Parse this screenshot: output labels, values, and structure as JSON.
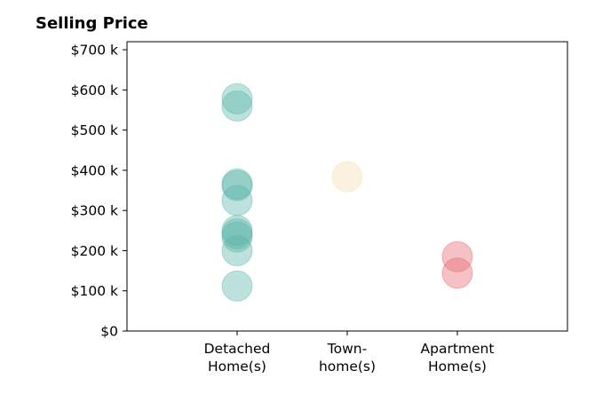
{
  "chart_data": {
    "type": "scatter",
    "title": "Selling Price",
    "xlabel": "",
    "ylabel": "",
    "ylim": [
      0,
      720
    ],
    "y_ticks": [
      0,
      100,
      200,
      300,
      400,
      500,
      600,
      700
    ],
    "y_tick_labels": [
      "$0",
      "$100 k",
      "$200 k",
      "$300 k",
      "$400 k",
      "$500 k",
      "$600 k",
      "$700 k"
    ],
    "categories": [
      "Detached\nHome(s)",
      "Town-\nhome(s)",
      "Apartment\nHome(s)"
    ],
    "colors": {
      "Detached": "#5bb5a8",
      "Townhome": "#f3dfaf",
      "Apartment": "#e8646f"
    },
    "grid": false,
    "points": [
      {
        "category": 0,
        "y": 578
      },
      {
        "category": 0,
        "y": 560
      },
      {
        "category": 0,
        "y": 366
      },
      {
        "category": 0,
        "y": 362
      },
      {
        "category": 0,
        "y": 325
      },
      {
        "category": 0,
        "y": 250
      },
      {
        "category": 0,
        "y": 242
      },
      {
        "category": 0,
        "y": 234
      },
      {
        "category": 0,
        "y": 200
      },
      {
        "category": 0,
        "y": 112
      },
      {
        "category": 1,
        "y": 384
      },
      {
        "category": 2,
        "y": 185
      },
      {
        "category": 2,
        "y": 144
      }
    ]
  }
}
